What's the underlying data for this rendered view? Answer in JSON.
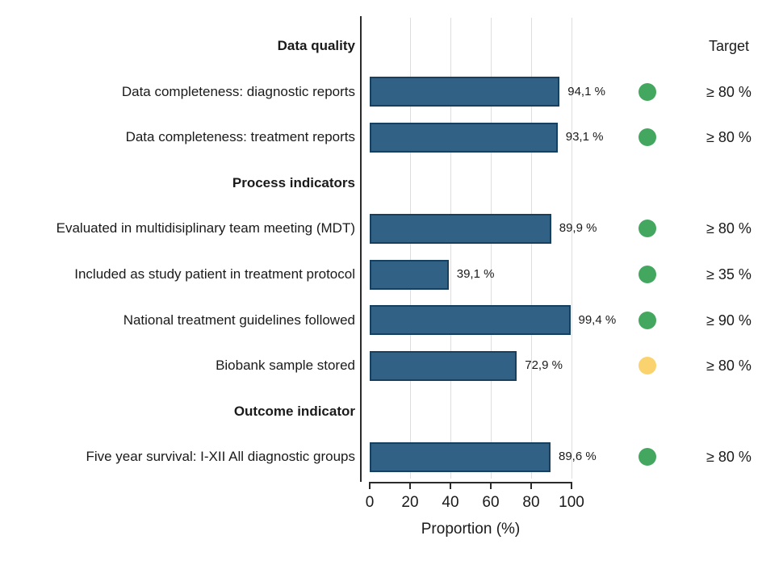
{
  "target_column_header": "Target",
  "chart_data": {
    "type": "bar",
    "orientation": "horizontal",
    "title": "",
    "xlabel": "Proportion (%)",
    "ylabel": "",
    "xlim": [
      0,
      100
    ],
    "x_ticks": [
      0,
      20,
      40,
      60,
      80,
      100
    ],
    "grid": "vertical-light",
    "rows": [
      {
        "type": "header",
        "label": "Data quality"
      },
      {
        "type": "bar",
        "label": "Data completeness: diagnostic reports",
        "value": 94.1,
        "value_label": "94,1 %",
        "status": "green",
        "target": "≥ 80 %"
      },
      {
        "type": "bar",
        "label": "Data completeness: treatment reports",
        "value": 93.1,
        "value_label": "93,1 %",
        "status": "green",
        "target": "≥ 80 %"
      },
      {
        "type": "header",
        "label": "Process indicators"
      },
      {
        "type": "bar",
        "label": "Evaluated in multidisiplinary team meeting (MDT)",
        "value": 89.9,
        "value_label": "89,9 %",
        "status": "green",
        "target": "≥ 80 %"
      },
      {
        "type": "bar",
        "label": "Included as study patient in treatment protocol",
        "value": 39.1,
        "value_label": "39,1 %",
        "status": "green",
        "target": "≥ 35 %"
      },
      {
        "type": "bar",
        "label": "National treatment guidelines followed",
        "value": 99.4,
        "value_label": "99,4 %",
        "status": "green",
        "target": "≥ 90 %"
      },
      {
        "type": "bar",
        "label": "Biobank sample stored",
        "value": 72.9,
        "value_label": "72,9 %",
        "status": "yellow",
        "target": "≥ 80 %"
      },
      {
        "type": "header",
        "label": "Outcome indicator"
      },
      {
        "type": "bar",
        "label": "Five year survival: I-XII All diagnostic groups",
        "value": 89.6,
        "value_label": "89,6 %",
        "status": "green",
        "target": "≥ 80 %"
      }
    ],
    "colors": {
      "bar_fill": "#316184",
      "bar_border": "#173f60",
      "green": "#44a75f",
      "yellow": "#fad36e",
      "gridline": "#dedede",
      "axis": "#2b2b2b",
      "text": "#1a1a1a"
    }
  }
}
